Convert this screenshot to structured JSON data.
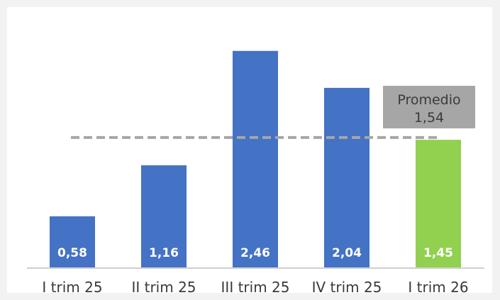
{
  "chart_data": {
    "type": "bar",
    "categories": [
      "I trim 25",
      "II trim 25",
      "III trim 25",
      "IV trim 25",
      "I trim 26"
    ],
    "values": [
      0.58,
      1.16,
      2.46,
      2.04,
      1.45
    ],
    "value_labels": [
      "0,58",
      "1,16",
      "2,46",
      "2,04",
      "1,45"
    ],
    "bar_colors": [
      "#4472c4",
      "#4472c4",
      "#4472c4",
      "#4472c4",
      "#92d050"
    ],
    "title": "",
    "xlabel": "",
    "ylabel": "",
    "ylim": [
      0,
      2.7
    ],
    "grid": false,
    "reference_line": {
      "value": 1.54,
      "label": "Promedio",
      "value_label": "1,54",
      "style": "dashed",
      "color": "#a6a6a6"
    }
  }
}
